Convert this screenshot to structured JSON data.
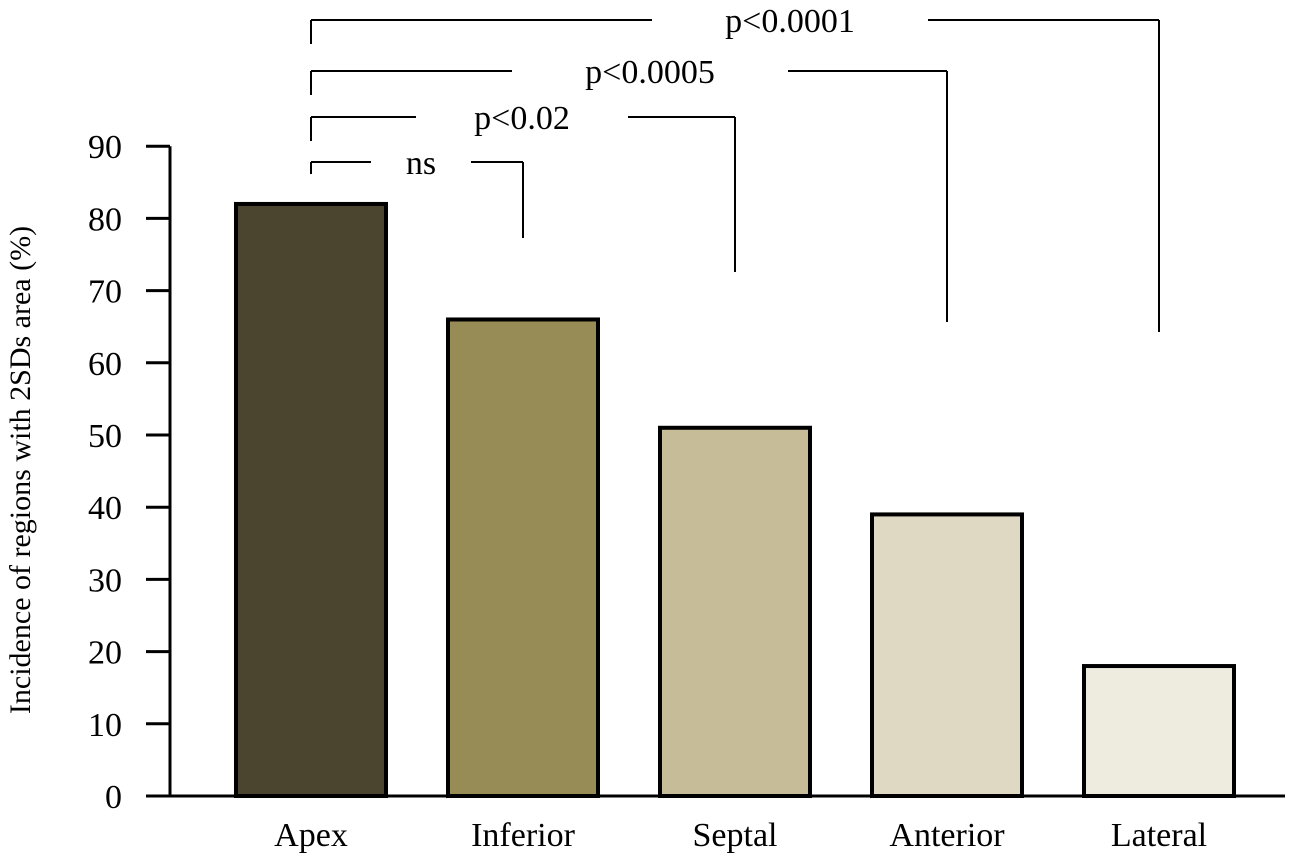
{
  "chart_data": {
    "type": "bar",
    "title": "",
    "xlabel": "",
    "ylabel": "Incidence of regions with 2SDs area (%)",
    "ylim": [
      0,
      90
    ],
    "yticks": [
      0,
      10,
      20,
      30,
      40,
      50,
      60,
      70,
      80,
      90
    ],
    "grid": false,
    "legend": "none",
    "categories": [
      "Apex",
      "Inferior",
      "Septal",
      "Anterior",
      "Lateral"
    ],
    "values": [
      82,
      66,
      51,
      39,
      18
    ],
    "bar_colors": [
      "#4b452f",
      "#978b56",
      "#c6bd98",
      "#dfd9c3",
      "#eeebdf"
    ],
    "comparisons": [
      {
        "from": "Apex",
        "to": "Inferior",
        "label": "ns"
      },
      {
        "from": "Apex",
        "to": "Septal",
        "label": "p<0.02"
      },
      {
        "from": "Apex",
        "to": "Anterior",
        "label": "p<0.0005"
      },
      {
        "from": "Apex",
        "to": "Lateral",
        "label": "p<0.0001"
      }
    ]
  }
}
